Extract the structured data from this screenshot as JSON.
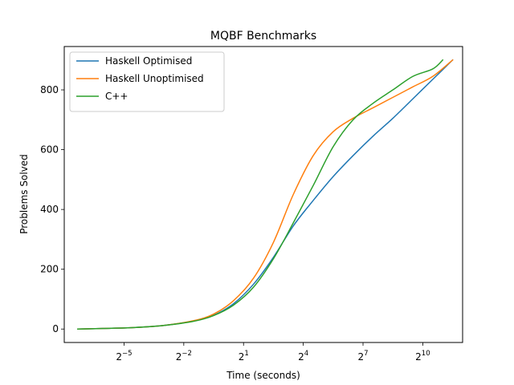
{
  "chart_data": {
    "type": "line",
    "title": "MQBF Benchmarks",
    "xlabel": "Time (seconds)",
    "ylabel": "Problems Solved",
    "x_scale": "log2",
    "xlim": [
      0.0039,
      4096
    ],
    "ylim": [
      -45,
      945
    ],
    "x_ticks": [
      {
        "base": "2",
        "exp": "−5",
        "value": 0.03125
      },
      {
        "base": "2",
        "exp": "−2",
        "value": 0.25
      },
      {
        "base": "2",
        "exp": "1",
        "value": 2
      },
      {
        "base": "2",
        "exp": "4",
        "value": 16
      },
      {
        "base": "2",
        "exp": "7",
        "value": 128
      },
      {
        "base": "2",
        "exp": "10",
        "value": 1024
      }
    ],
    "y_ticks": [
      {
        "label": "0",
        "value": 0
      },
      {
        "label": "200",
        "value": 200
      },
      {
        "label": "400",
        "value": 400
      },
      {
        "label": "600",
        "value": 600
      },
      {
        "label": "800",
        "value": 800
      }
    ],
    "grid": false,
    "legend_position": "upper-left",
    "series": [
      {
        "name": "Haskell Optimised",
        "color": "#1f77b4",
        "x": [
          0.00625,
          0.0156,
          0.0442,
          0.125,
          0.354,
          0.707,
          1.414,
          2.83,
          5.66,
          11.3,
          22.6,
          45.3,
          90.5,
          181,
          362,
          724,
          1448,
          2896
        ],
        "y": [
          0,
          2,
          5,
          12,
          27,
          46,
          85,
          150,
          240,
          345,
          430,
          510,
          580,
          645,
          705,
          770,
          835,
          900
        ]
      },
      {
        "name": "Haskell Unoptimised",
        "color": "#ff7f0e",
        "x": [
          0.00625,
          0.0156,
          0.0442,
          0.125,
          0.354,
          0.707,
          1.414,
          2.83,
          5.66,
          11.3,
          22.6,
          45.3,
          90.5,
          181,
          362,
          724,
          1448,
          2896
        ],
        "y": [
          0,
          2,
          5,
          12,
          28,
          50,
          95,
          170,
          290,
          450,
          580,
          660,
          705,
          740,
          775,
          810,
          845,
          900
        ]
      },
      {
        "name": "C++",
        "color": "#2ca02c",
        "x": [
          0.00625,
          0.0156,
          0.0442,
          0.125,
          0.354,
          0.707,
          1.414,
          2.83,
          5.66,
          11.3,
          22.6,
          45.3,
          90.5,
          181,
          362,
          724,
          1448,
          2048
        ],
        "y": [
          0,
          2,
          5,
          12,
          26,
          45,
          80,
          140,
          235,
          355,
          480,
          610,
          700,
          755,
          800,
          845,
          870,
          900
        ]
      }
    ]
  }
}
